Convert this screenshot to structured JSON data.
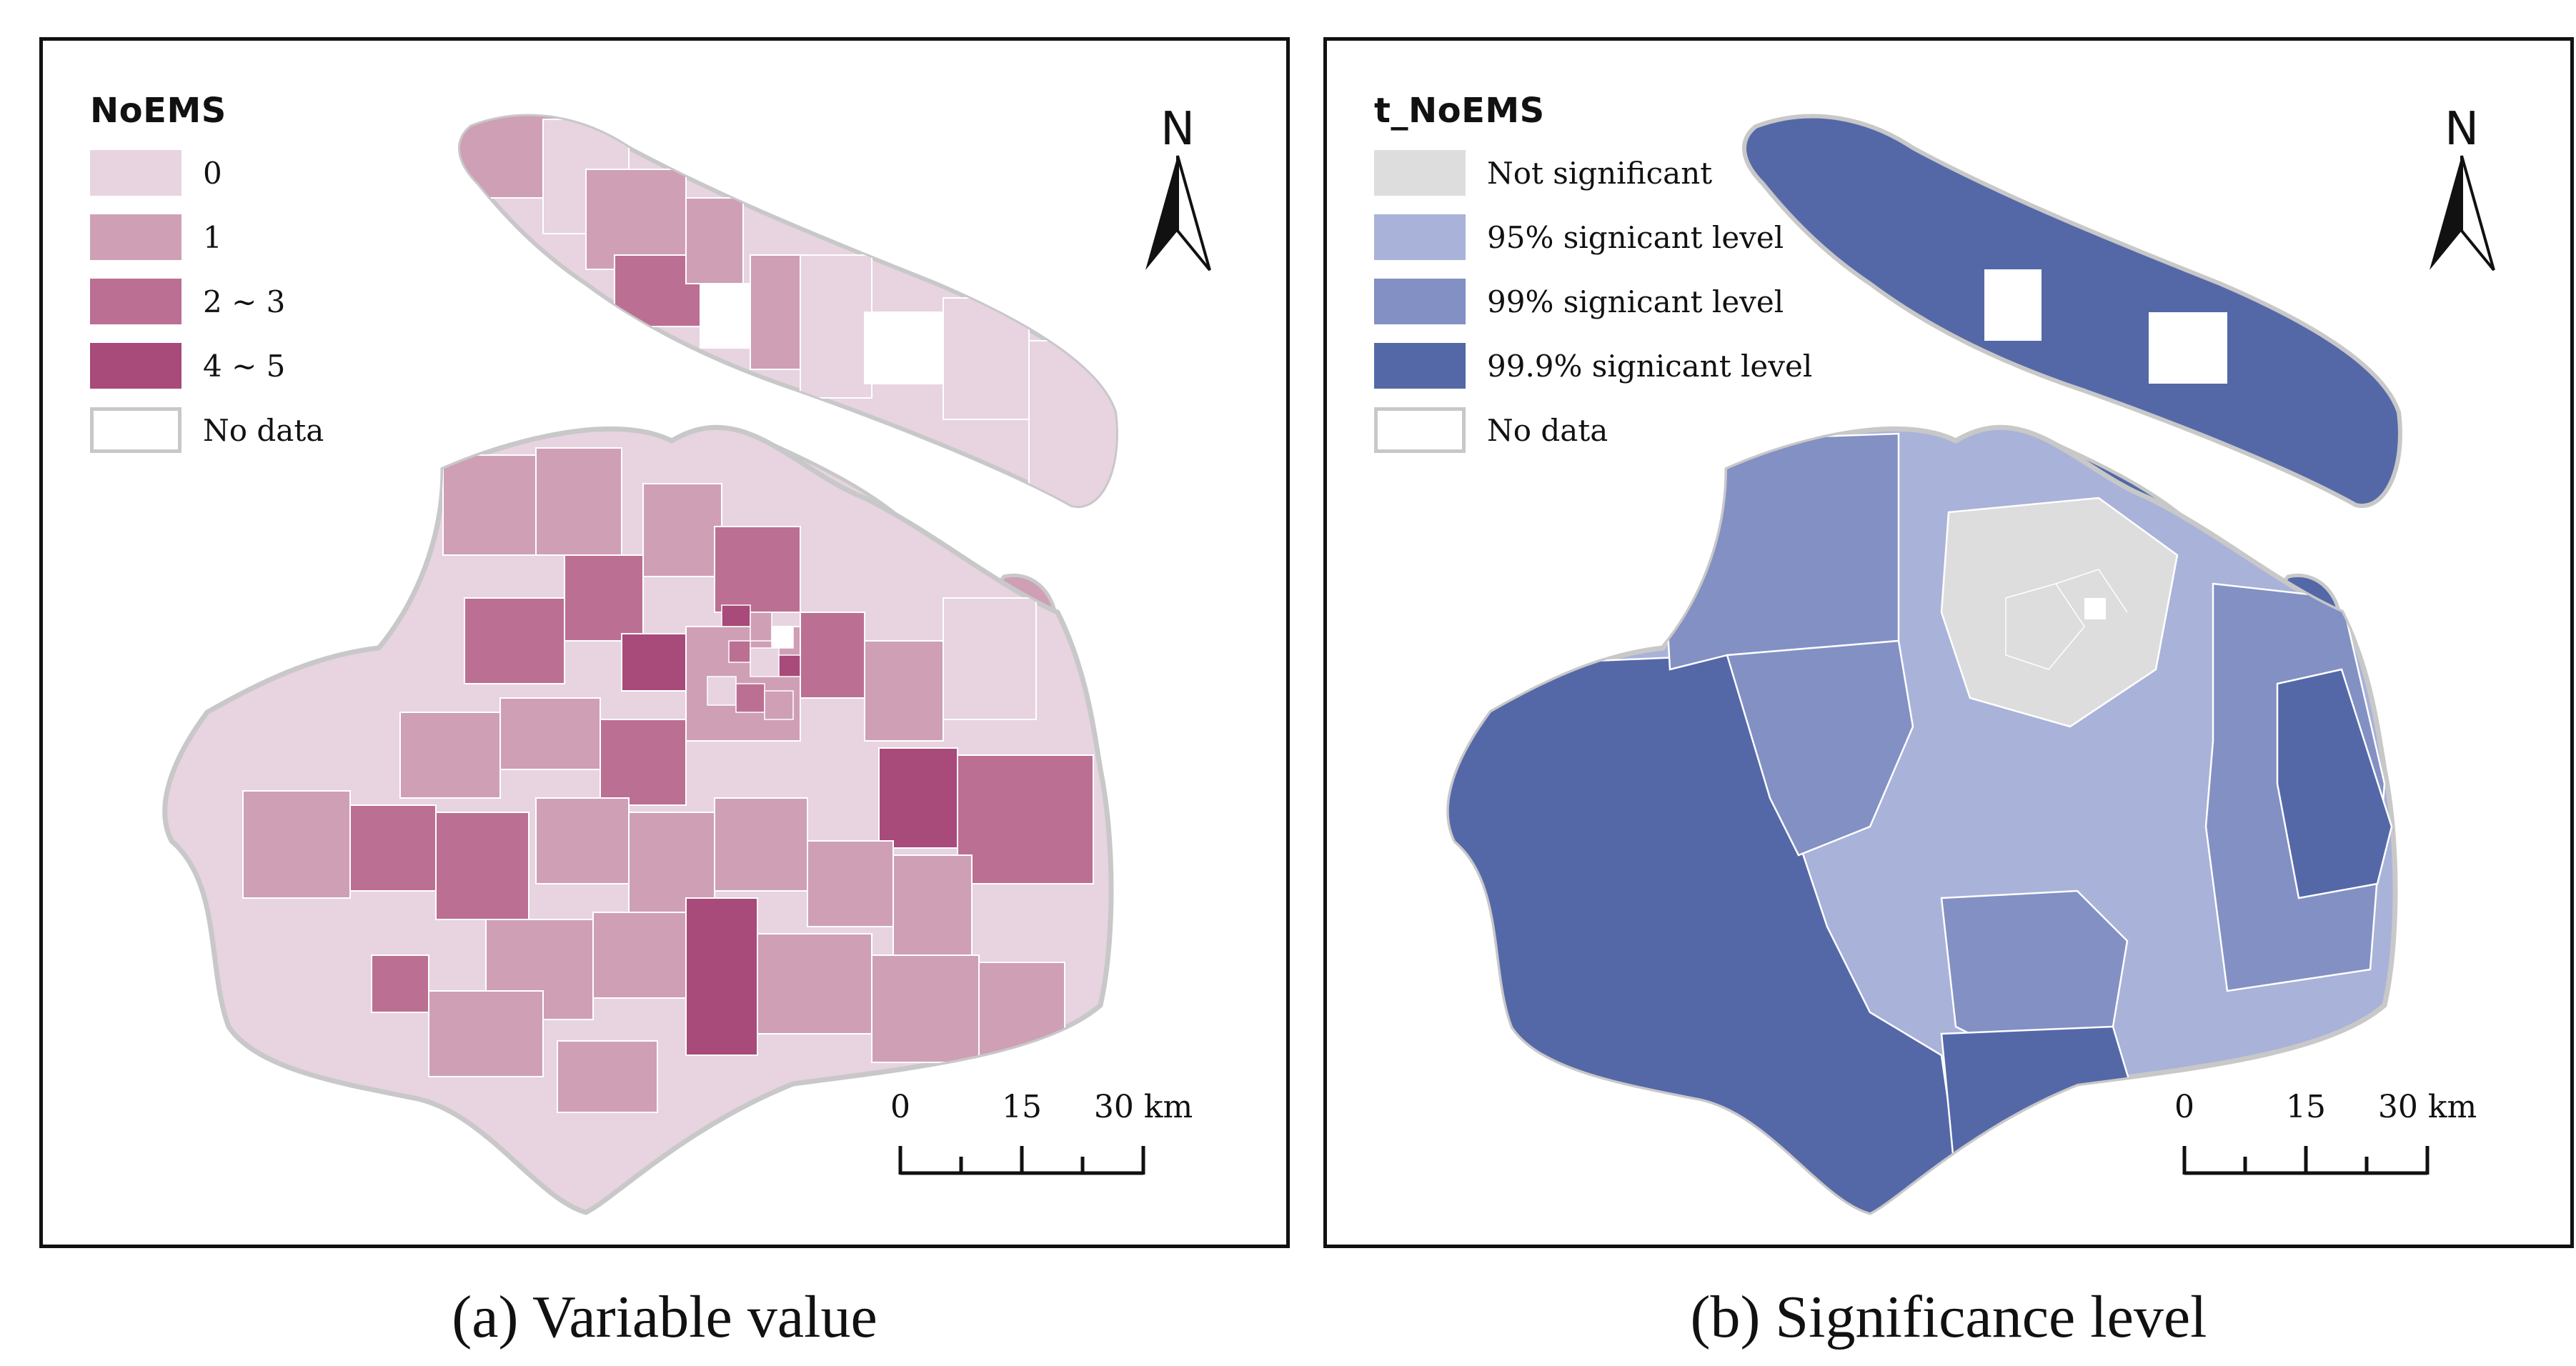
{
  "panels": [
    {
      "id": "a",
      "legend": {
        "title": "NoEMS",
        "items": [
          {
            "label": "0",
            "color": "#e7d4e0"
          },
          {
            "label": "1",
            "color": "#cf9fb6"
          },
          {
            "label": "2 ~ 3",
            "color": "#bb6f93"
          },
          {
            "label": "4 ~ 5",
            "color": "#a84a7a"
          },
          {
            "label": "No data",
            "color": "#ffffff"
          }
        ]
      },
      "north_label": "N",
      "scale": {
        "ticks": [
          "0",
          "15",
          "30 km"
        ]
      },
      "caption": "(a) Variable value"
    },
    {
      "id": "b",
      "legend": {
        "title": "t_NoEMS",
        "items": [
          {
            "label": "Not significant",
            "color": "#dddddd"
          },
          {
            "label": "95% signicant level",
            "color": "#a9b2d9"
          },
          {
            "label": "99% signicant level",
            "color": "#8390c4"
          },
          {
            "label": "99.9% signicant level",
            "color": "#5468a8"
          },
          {
            "label": "No data",
            "color": "#ffffff"
          }
        ]
      },
      "north_label": "N",
      "scale": {
        "ticks": [
          "0",
          "15",
          "30 km"
        ]
      },
      "caption": "(b) Significance level"
    }
  ]
}
